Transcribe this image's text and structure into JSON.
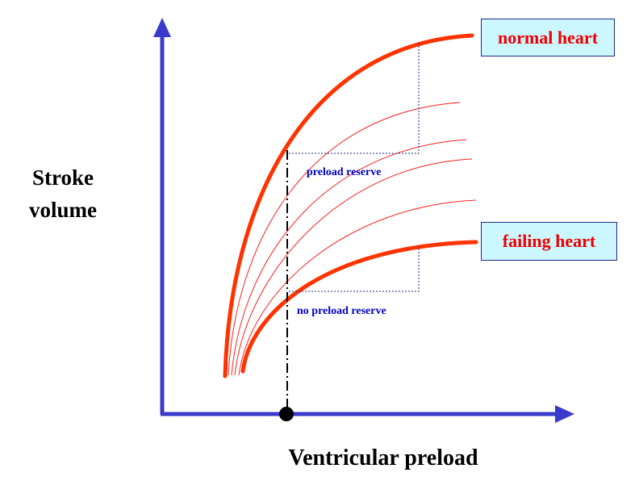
{
  "axes": {
    "y_label_line1": "Stroke",
    "y_label_line2": "volume",
    "x_label": "Ventricular preload",
    "axis_color": "#3a3acc"
  },
  "curves": {
    "main_color": "#ff3300",
    "intermediate_color": "#ff2020"
  },
  "callouts": {
    "normal": "normal heart",
    "failing": "failing heart",
    "text_color": "#ee0000",
    "fill": "#ccf7ff"
  },
  "annotations": {
    "preload_reserve": "preload reserve",
    "no_preload_reserve": "no preload reserve",
    "text_color": "#0000cc"
  }
}
